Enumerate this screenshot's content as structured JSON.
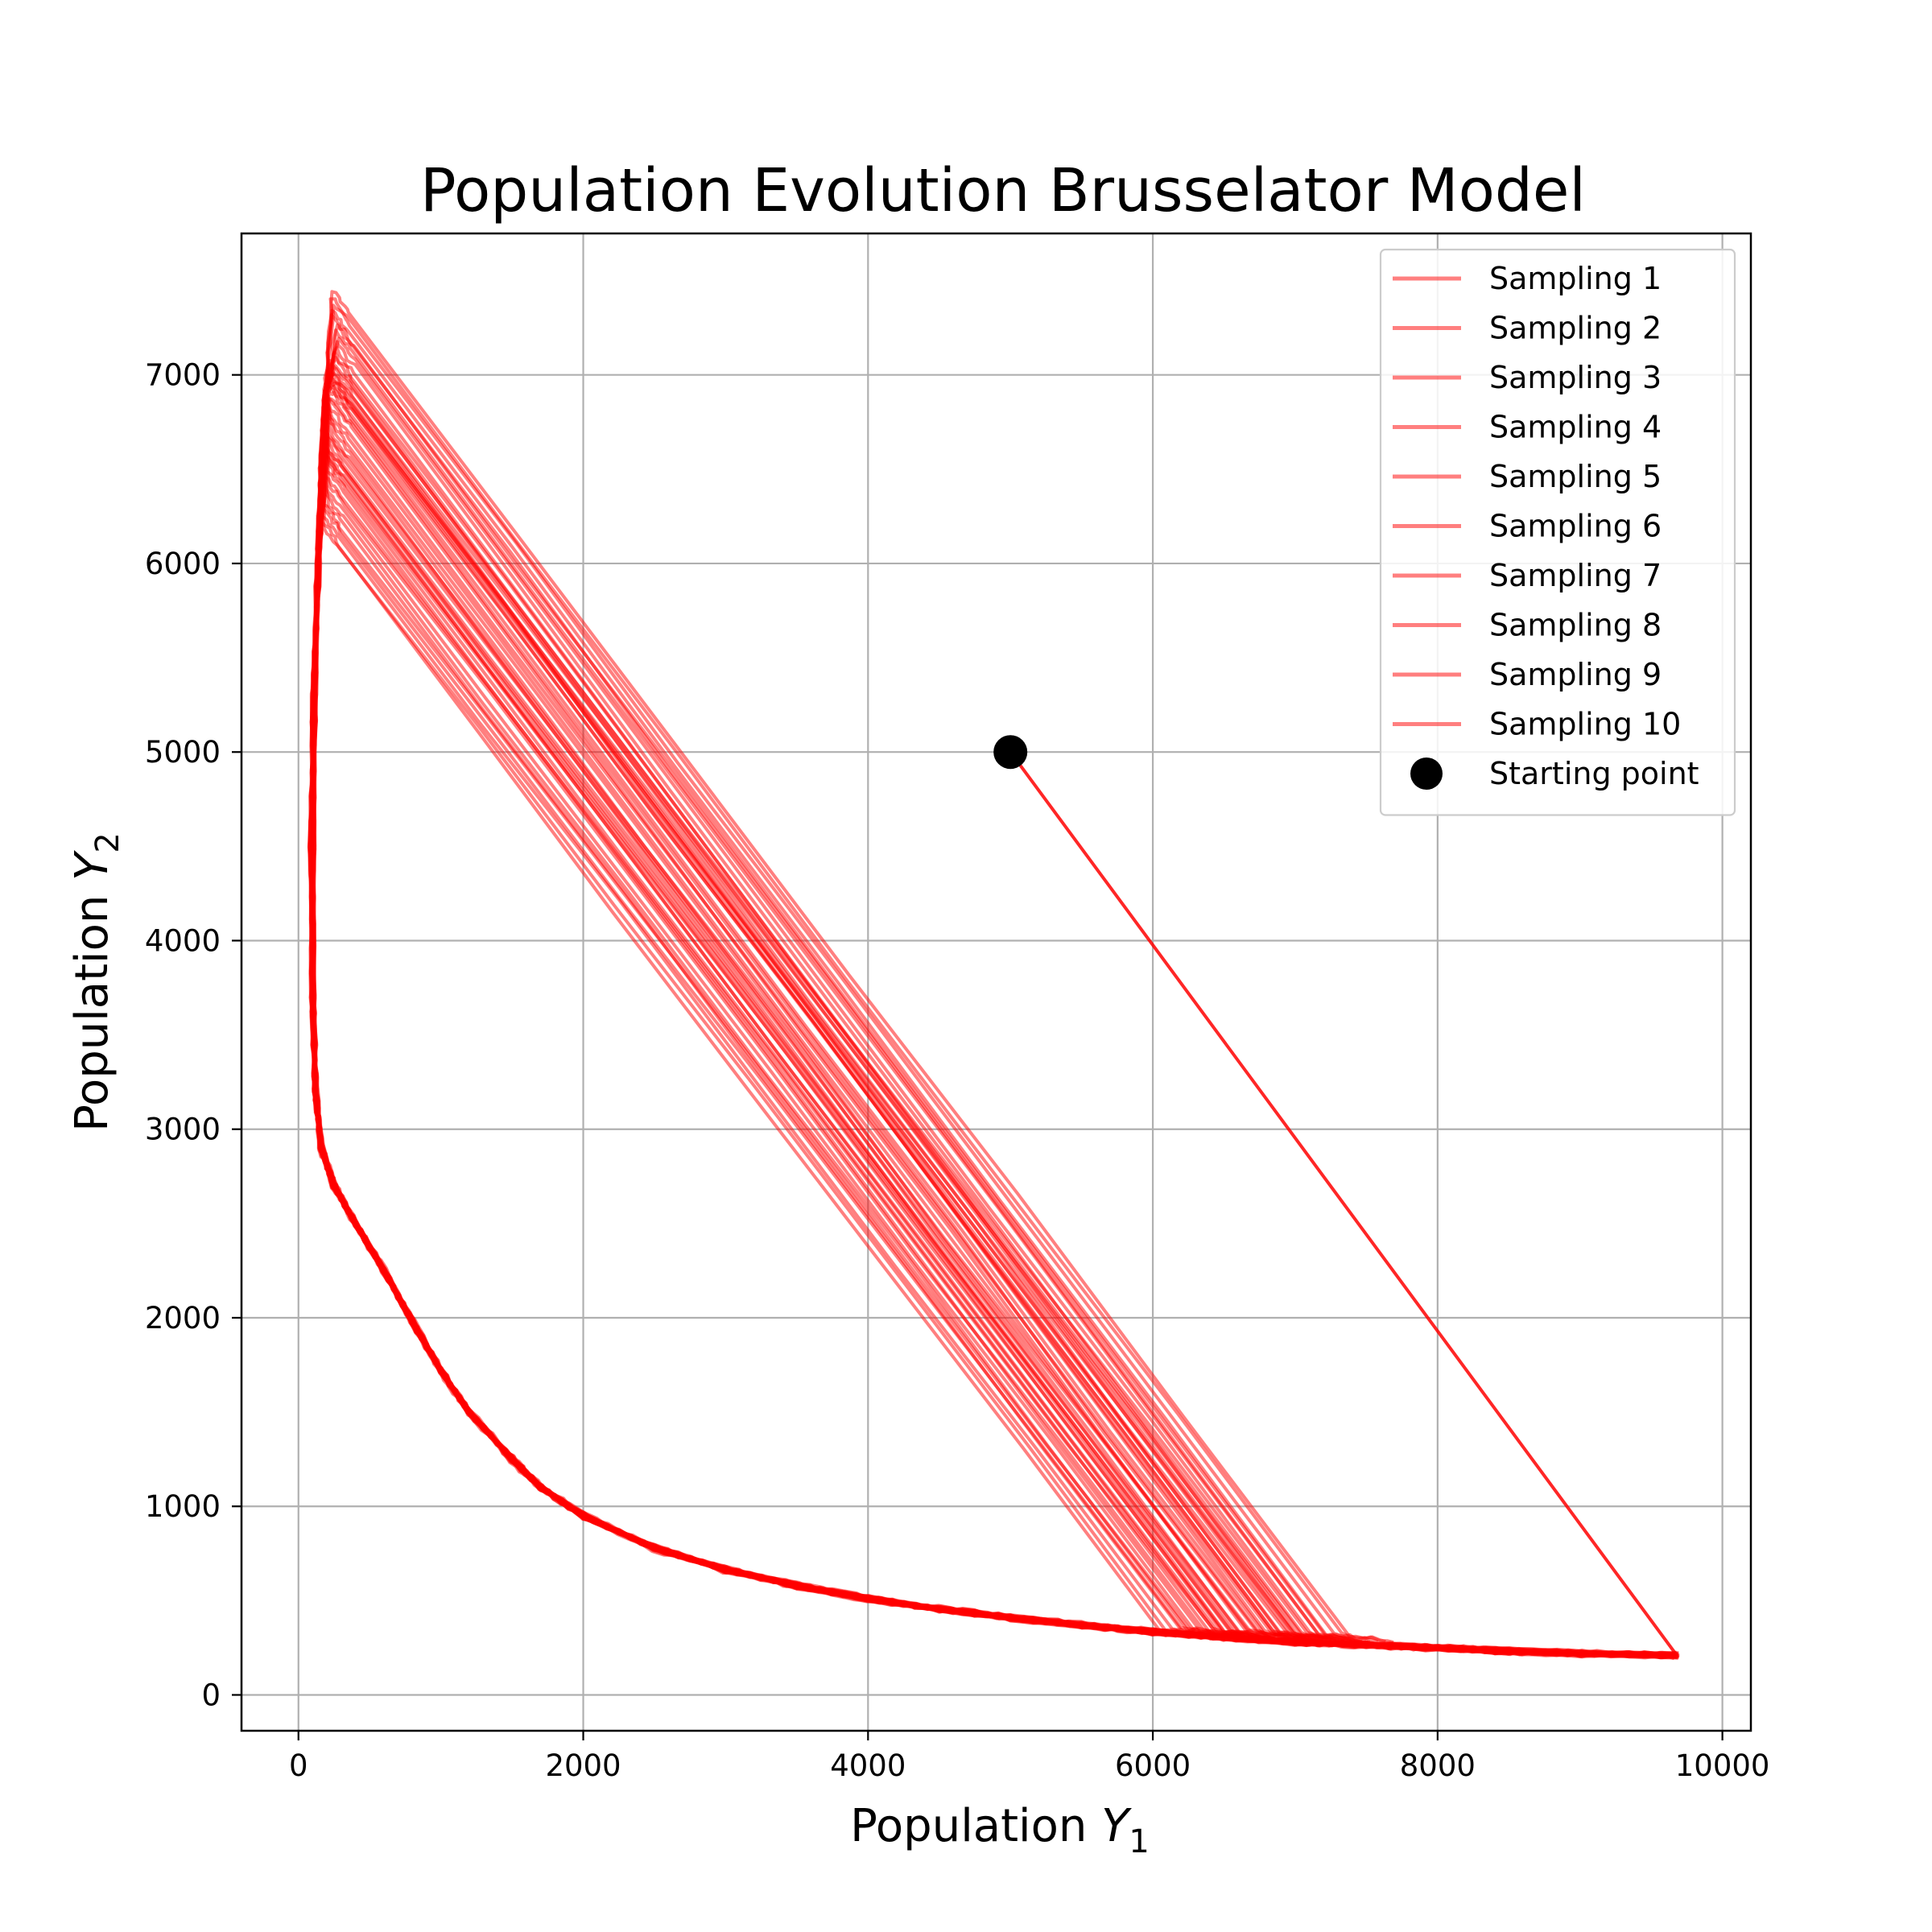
{
  "chart_data": {
    "type": "line",
    "title": "Population Evolution Brusselator Model",
    "xlabel": {
      "prefix": "Population ",
      "symbol": "Y",
      "subscript": "1"
    },
    "ylabel": {
      "prefix": "Population ",
      "symbol": "Y",
      "subscript": "2"
    },
    "xlim": [
      -400,
      10200
    ],
    "ylim": [
      -190,
      7750
    ],
    "xticks": [
      0,
      2000,
      4000,
      6000,
      8000,
      10000
    ],
    "yticks": [
      0,
      1000,
      2000,
      3000,
      4000,
      5000,
      6000,
      7000
    ],
    "xtick_labels": [
      "0",
      "2000",
      "4000",
      "6000",
      "8000",
      "10000"
    ],
    "ytick_labels": [
      "0",
      "1000",
      "2000",
      "3000",
      "4000",
      "5000",
      "6000",
      "7000"
    ],
    "grid": true,
    "legend_position": "top-right",
    "line_color": "#ff0000",
    "line_opacity": 0.5,
    "starting_point": {
      "label": "Starting point",
      "x": 5000,
      "y": 5000,
      "color": "#000000"
    },
    "transient": [
      [
        5000,
        5000
      ],
      [
        9680,
        210
      ]
    ],
    "limit_cycle_lower": [
      [
        9680,
        210
      ],
      [
        9000,
        220
      ],
      [
        8500,
        232
      ],
      [
        8000,
        250
      ],
      [
        7500,
        265
      ],
      [
        7000,
        280
      ],
      [
        6500,
        305
      ],
      [
        6000,
        335
      ],
      [
        5500,
        370
      ],
      [
        5000,
        410
      ],
      [
        4500,
        455
      ],
      [
        4000,
        510
      ],
      [
        3500,
        580
      ],
      [
        3000,
        665
      ],
      [
        2500,
        780
      ],
      [
        2000,
        950
      ],
      [
        1700,
        1100
      ],
      [
        1500,
        1250
      ],
      [
        1200,
        1500
      ],
      [
        1000,
        1720
      ],
      [
        800,
        1980
      ],
      [
        600,
        2250
      ],
      [
        400,
        2500
      ],
      [
        250,
        2700
      ],
      [
        160,
        2900
      ],
      [
        120,
        3200
      ],
      [
        100,
        3700
      ],
      [
        95,
        4500
      ],
      [
        110,
        5300
      ],
      [
        140,
        6000
      ],
      [
        165,
        6500
      ],
      [
        190,
        6900
      ]
    ],
    "series": [
      {
        "name": "Sampling 1",
        "peak": [
          240,
          7380
        ],
        "descent_end": [
          7280,
          320
        ]
      },
      {
        "name": "Sampling 2",
        "peak": [
          180,
          6250
        ],
        "descent_end": [
          6150,
          350
        ]
      },
      {
        "name": "Sampling 3",
        "peak": [
          260,
          7050
        ],
        "descent_end": [
          6900,
          330
        ]
      },
      {
        "name": "Sampling 4",
        "peak": [
          210,
          6550
        ],
        "descent_end": [
          6450,
          340
        ]
      },
      {
        "name": "Sampling 5",
        "peak": [
          250,
          6900
        ],
        "descent_end": [
          6780,
          330
        ]
      },
      {
        "name": "Sampling 6",
        "peak": [
          200,
          6400
        ],
        "descent_end": [
          6300,
          345
        ]
      },
      {
        "name": "Sampling 7",
        "peak": [
          270,
          7200
        ],
        "descent_end": [
          7100,
          325
        ]
      },
      {
        "name": "Sampling 8",
        "peak": [
          230,
          6750
        ],
        "descent_end": [
          6620,
          335
        ]
      },
      {
        "name": "Sampling 9",
        "peak": [
          190,
          6650
        ],
        "descent_end": [
          6550,
          338
        ]
      },
      {
        "name": "Sampling 10",
        "peak": [
          220,
          7000
        ],
        "descent_end": [
          6980,
          328
        ]
      }
    ]
  }
}
